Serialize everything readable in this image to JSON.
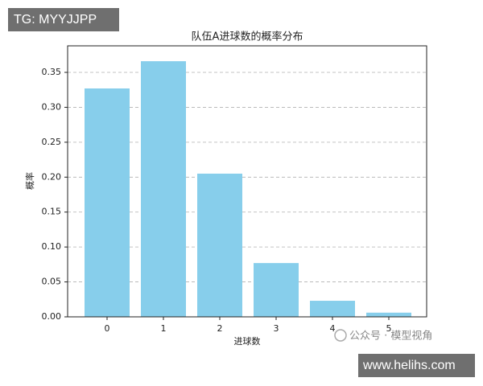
{
  "chart_data": {
    "type": "bar",
    "title": "队伍A进球数的概率分布",
    "x_label": "进球数",
    "y_label": "概率",
    "categories": [
      "0",
      "1",
      "2",
      "3",
      "4",
      "5"
    ],
    "values": [
      0.327,
      0.366,
      0.205,
      0.077,
      0.023,
      0.006
    ],
    "color": "#87ceeb",
    "ylim": [
      0,
      0.388
    ],
    "yticks": [
      {
        "value": 0,
        "label": "0.00"
      },
      {
        "value": 0.05,
        "label": "0.05"
      },
      {
        "value": 0.1,
        "label": "0.10"
      },
      {
        "value": 0.15,
        "label": "0.15"
      },
      {
        "value": 0.2,
        "label": "0.20"
      },
      {
        "value": 0.25,
        "label": "0.25"
      },
      {
        "value": 0.3,
        "label": "0.30"
      },
      {
        "value": 0.35,
        "label": "0.35"
      }
    ],
    "grid": true
  },
  "overlays": {
    "top_left": "TG: MYYJJPP",
    "wechat": "公众号 · 模型视角",
    "bottom_right": "www.helihs.com"
  }
}
